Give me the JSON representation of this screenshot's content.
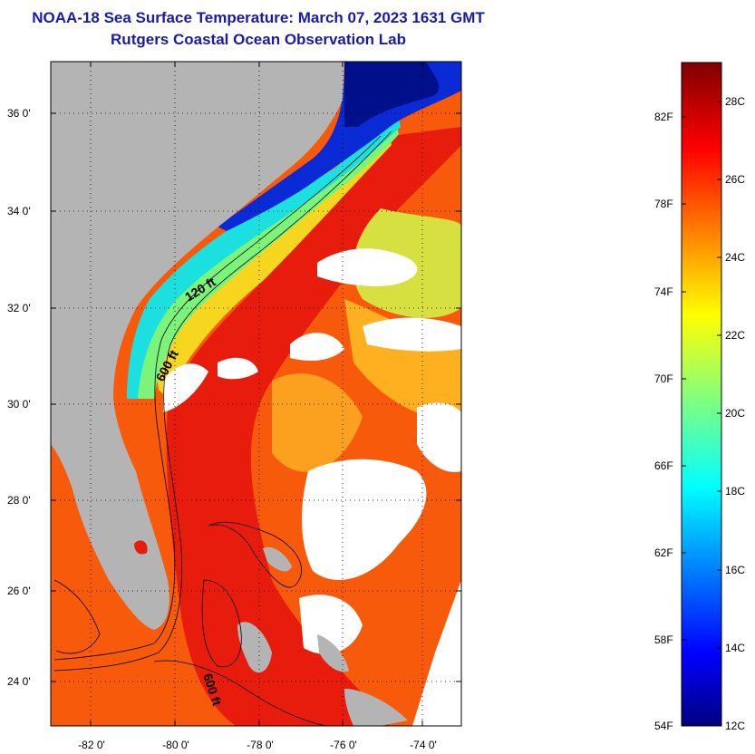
{
  "title": {
    "line1": "NOAA-18 Sea Surface Temperature:  March 07, 2023 1631 GMT",
    "line2": "Rutgers Coastal Ocean Observation Lab"
  },
  "map": {
    "lat_labels": [
      "36 0'",
      "34 0'",
      "32 0'",
      "30 0'",
      "28 0'",
      "26 0'",
      "24 0'"
    ],
    "lon_labels": [
      "-82 0'",
      "-80 0'",
      "-78 0'",
      "-76 0'",
      "-74 0'"
    ],
    "contours": [
      "120 ft",
      "600 ft",
      "600 ft"
    ],
    "lat_range": [
      23,
      37
    ],
    "lon_range": [
      -83,
      -73
    ],
    "colors": {
      "land": "#b4b4b4",
      "cloud": "#ffffff",
      "frame": "#000000"
    }
  },
  "colorbar": {
    "f_labels": [
      "82F",
      "78F",
      "74F",
      "70F",
      "66F",
      "62F",
      "58F",
      "54F"
    ],
    "c_labels": [
      "28C",
      "26C",
      "24C",
      "22C",
      "20C",
      "18C",
      "16C",
      "14C",
      "12C"
    ],
    "range_c": [
      12,
      29
    ],
    "colormap": "jet"
  }
}
